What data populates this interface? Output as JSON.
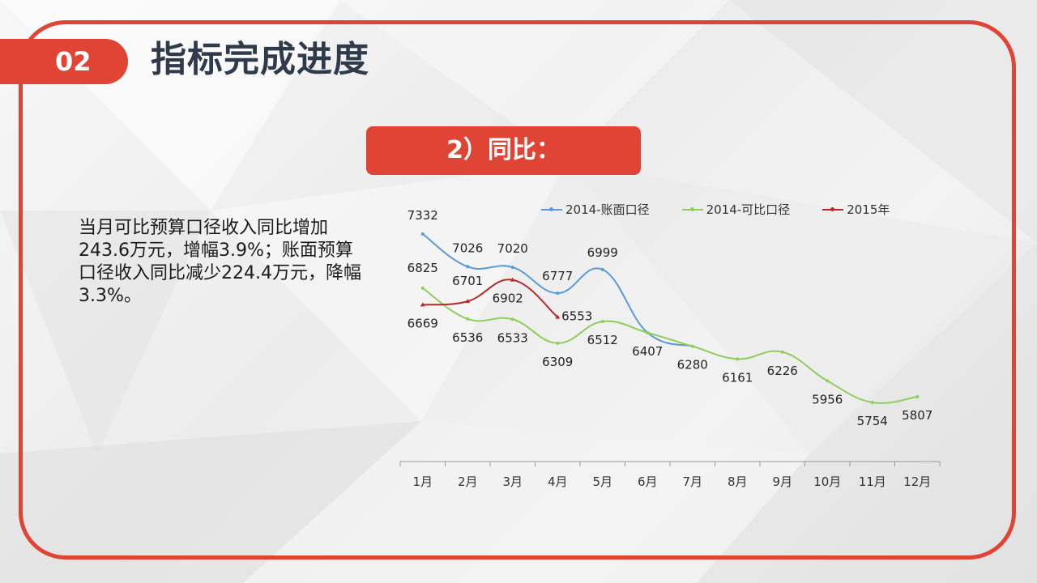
{
  "header": {
    "section_number": "02",
    "title": "指标完成进度"
  },
  "subtitle": "2）同比：",
  "summary_text": "当月可比预算口径收入同比增加243.6万元，增幅3.9%；账面预算口径收入同比减少224.4万元，降幅3.3%。",
  "colors": {
    "accent": "#e04434",
    "series_book": "#5b9bd5",
    "series_comparable": "#8dce5c",
    "series_2015": "#b72a2a"
  },
  "chart_data": {
    "type": "line",
    "categories": [
      "1月",
      "2月",
      "3月",
      "4月",
      "5月",
      "6月",
      "7月",
      "8月",
      "9月",
      "10月",
      "11月",
      "12月"
    ],
    "series": [
      {
        "name": "2014-账面口径",
        "values": [
          7332,
          7026,
          7020,
          6777,
          6999,
          6407,
          6280,
          null,
          null,
          null,
          null,
          null
        ],
        "labels": [
          7332,
          7026,
          7020,
          6777,
          6999,
          null,
          null,
          null,
          null,
          null,
          null,
          null
        ]
      },
      {
        "name": "2014-可比口径",
        "values": [
          6825,
          6536,
          6533,
          6309,
          6512,
          6407,
          6280,
          6161,
          6226,
          5956,
          5754,
          5807
        ],
        "labels": [
          6825,
          6536,
          6533,
          6309,
          6512,
          6407,
          6280,
          6161,
          6226,
          5956,
          5754,
          5807
        ]
      },
      {
        "name": "2015年",
        "values": [
          6669,
          6701,
          6902,
          6553,
          null,
          null,
          null,
          null,
          null,
          null,
          null,
          null
        ],
        "labels": [
          6669,
          6701,
          6902,
          6553,
          null,
          null,
          null,
          null,
          null,
          null,
          null,
          null
        ]
      }
    ],
    "ylim": [
      5200,
      7400
    ],
    "legend_position": "top",
    "grid": false
  }
}
